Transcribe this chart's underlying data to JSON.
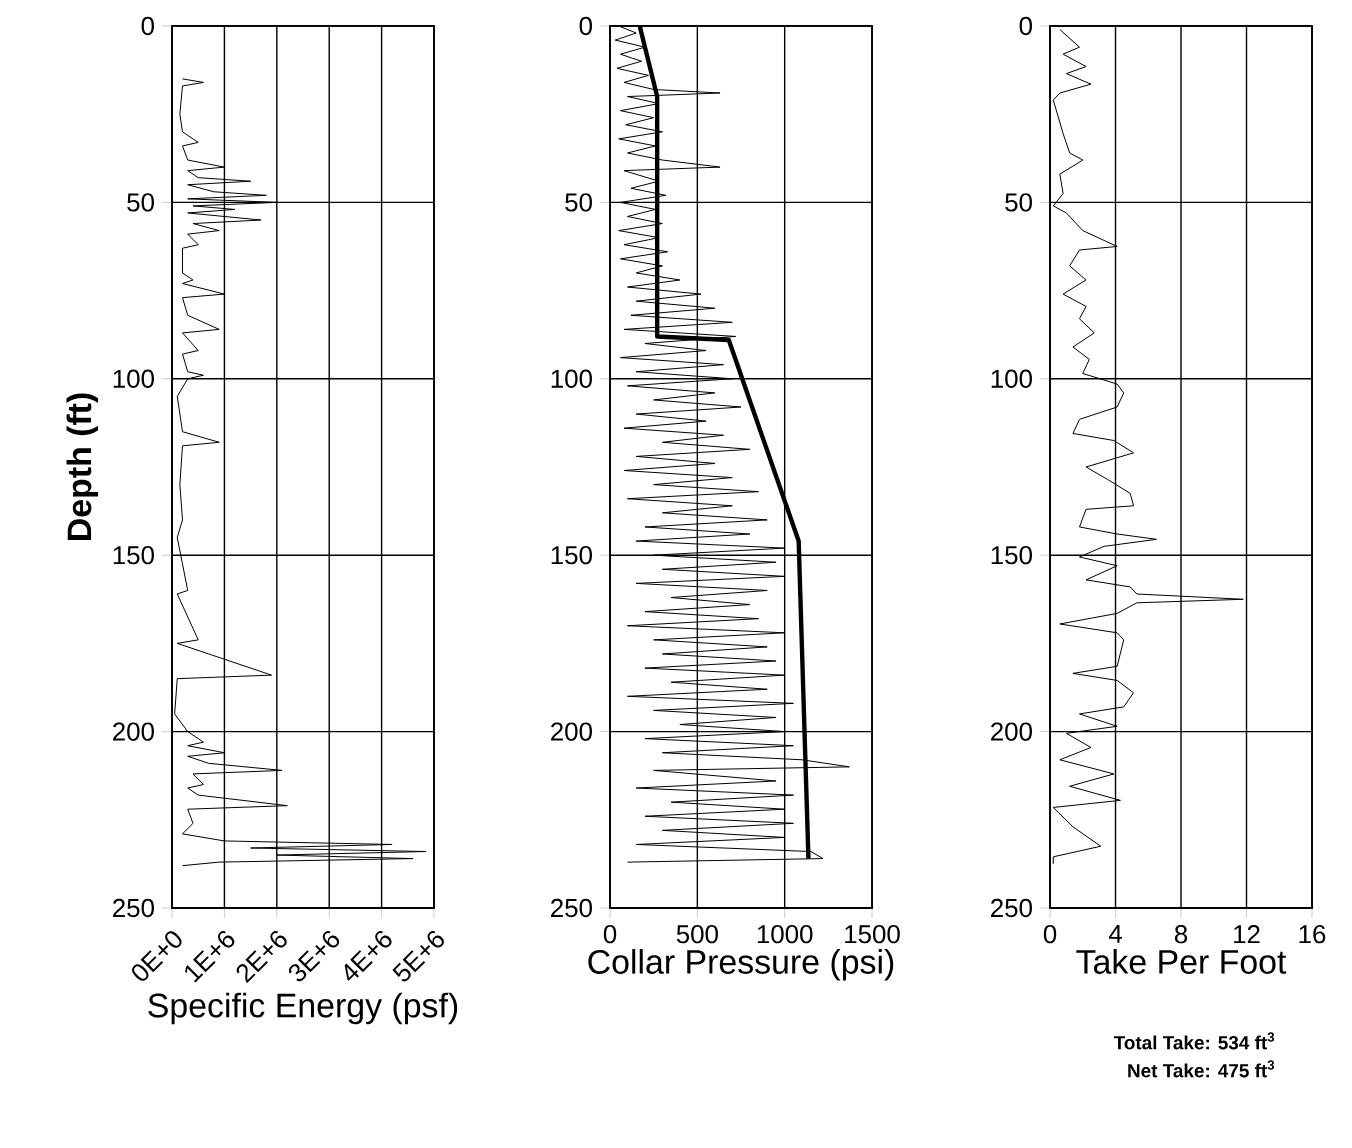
{
  "chart_data": [
    {
      "type": "line",
      "xlabel": "Specific Energy (psf)",
      "ylabel": "Depth (ft)",
      "grid": true,
      "xlim": [
        0,
        5000000
      ],
      "xticks": [
        {
          "value": 0,
          "label": "0E+0"
        },
        {
          "value": 1000000,
          "label": "1E+6"
        },
        {
          "value": 2000000,
          "label": "2E+6"
        },
        {
          "value": 3000000,
          "label": "3E+6"
        },
        {
          "value": 4000000,
          "label": "4E+6"
        },
        {
          "value": 5000000,
          "label": "5E+6"
        }
      ],
      "ylim": [
        250,
        0
      ],
      "yticks": [
        0,
        50,
        100,
        150,
        200,
        250
      ],
      "series": [
        {
          "color": "#000000",
          "x": [
            200000,
            600000,
            200000,
            150000,
            200000,
            500000,
            200000,
            300000,
            1000000,
            300000,
            500000,
            1500000,
            300000,
            800000,
            1800000,
            300000,
            2000000,
            400000,
            1200000,
            300000,
            1700000,
            400000,
            900000,
            300000,
            500000,
            200000,
            200000,
            400000,
            200000,
            1000000,
            200000,
            300000,
            900000,
            200000,
            500000,
            200000,
            300000,
            600000,
            300000,
            100000,
            200000,
            900000,
            200000,
            150000,
            200000,
            100000,
            300000,
            100000,
            500000,
            100000,
            1900000,
            100000,
            50000,
            300000,
            600000,
            300000,
            1000000,
            300000,
            700000,
            2100000,
            400000,
            600000,
            300000,
            500000,
            2200000,
            300000,
            400000,
            200000,
            1000000,
            4200000,
            1500000,
            4850000,
            2000000,
            4600000,
            900000,
            200000
          ],
          "values": [
            15,
            16,
            17,
            25,
            30,
            33,
            34,
            38,
            40,
            41,
            43,
            44,
            45,
            47,
            48,
            49,
            50,
            51,
            52,
            53,
            55,
            56,
            58,
            59,
            62,
            63,
            70,
            72,
            73,
            76,
            77,
            82,
            86,
            87,
            92,
            93,
            98,
            99,
            100,
            105,
            115,
            118,
            119,
            130,
            140,
            145,
            160,
            161,
            174,
            175,
            184,
            185,
            195,
            200,
            203,
            204,
            206,
            207,
            209,
            211,
            212,
            215,
            216,
            218,
            221,
            222,
            226,
            229,
            231,
            232,
            233,
            234,
            235,
            236,
            237,
            238
          ]
        }
      ]
    },
    {
      "type": "line",
      "xlabel": "Collar Pressure (psi)",
      "grid": true,
      "xlim": [
        0,
        1500
      ],
      "xticks": [
        0,
        500,
        1000,
        1500
      ],
      "ylim": [
        250,
        0
      ],
      "yticks": [
        0,
        50,
        100,
        150,
        200,
        250
      ],
      "series": [
        {
          "color": "#000000",
          "x": [
            50,
            150,
            30,
            200,
            60,
            180,
            40,
            220,
            80,
            250,
            630,
            100,
            280,
            60,
            250,
            90,
            300,
            50,
            260,
            100,
            300,
            630,
            80,
            280,
            120,
            320,
            60,
            260,
            100,
            300,
            50,
            280,
            80,
            330,
            60,
            300,
            150,
            400,
            100,
            520,
            150,
            600,
            120,
            700,
            80,
            720,
            200,
            550,
            60,
            650,
            150,
            700,
            100,
            600,
            250,
            750,
            150,
            550,
            80,
            650,
            300,
            800,
            150,
            600,
            80,
            700,
            250,
            850,
            100,
            700,
            300,
            900,
            200,
            800,
            150,
            1000,
            250,
            950,
            300,
            1000,
            150,
            900,
            350,
            800,
            200,
            850,
            100,
            1000,
            250,
            900,
            300,
            950,
            200,
            1000,
            350,
            900,
            100,
            1050,
            250,
            950,
            400,
            1000,
            200,
            1050,
            300,
            1100,
            1370,
            250,
            950,
            150,
            1050,
            350,
            1000,
            200,
            1050,
            300,
            1000,
            150,
            1150,
            1220,
            100
          ],
          "values": [
            0,
            2,
            4,
            6,
            8,
            10,
            12,
            14,
            16,
            18,
            19,
            20,
            22,
            24,
            26,
            28,
            30,
            32,
            34,
            36,
            38,
            40,
            41,
            44,
            46,
            48,
            50,
            52,
            54,
            56,
            58,
            60,
            62,
            64,
            66,
            68,
            70,
            72,
            74,
            76,
            78,
            80,
            82,
            84,
            86,
            88,
            90,
            92,
            94,
            96,
            98,
            100,
            102,
            104,
            106,
            108,
            110,
            112,
            114,
            116,
            118,
            120,
            122,
            124,
            126,
            128,
            130,
            132,
            134,
            136,
            138,
            140,
            142,
            144,
            146,
            148,
            150,
            152,
            154,
            156,
            158,
            160,
            162,
            164,
            166,
            168,
            170,
            172,
            174,
            176,
            178,
            180,
            182,
            184,
            186,
            188,
            190,
            192,
            194,
            196,
            198,
            200,
            202,
            204,
            206,
            208,
            210,
            211,
            214,
            216,
            218,
            220,
            222,
            224,
            226,
            228,
            230,
            232,
            234,
            236,
            237
          ]
        },
        {
          "color": "#000000",
          "x": [
            170,
            270,
            270,
            680,
            1080,
            1136
          ],
          "values": [
            0,
            20,
            88,
            89,
            146,
            236
          ]
        }
      ]
    },
    {
      "type": "line",
      "xlabel": "Take Per Foot",
      "grid": true,
      "xlim": [
        0,
        16
      ],
      "xticks": [
        0,
        4,
        8,
        12,
        16
      ],
      "ylim": [
        250,
        0
      ],
      "yticks": [
        0,
        50,
        100,
        150,
        200,
        250
      ],
      "annotations": [
        "Total Take: 534 ft$^{3}$",
        "Net Take: 475 ft$^{3}$"
      ],
      "series": [
        {
          "color": "#000000",
          "x": [
            0.6,
            1.8,
            0.8,
            2.2,
            1.0,
            2.5,
            0.6,
            0.2,
            0.8,
            1.2,
            2.0,
            0.6,
            0.8,
            0.2,
            1.0,
            2.0,
            4.1,
            1.8,
            1.2,
            2.2,
            0.8,
            2.2,
            1.8,
            2.7,
            1.4,
            2.4,
            2.0,
            4.1,
            4.5,
            4.1,
            1.8,
            1.4,
            3.9,
            5.1,
            2.2,
            3.5,
            4.9,
            5.1,
            2.2,
            1.8,
            4.1,
            6.5,
            3.3,
            1.8,
            4.1,
            2.2,
            4.9,
            5.3,
            11.8,
            5.3,
            4.1,
            0.6,
            4.1,
            4.5,
            4.1,
            1.4,
            4.1,
            5.1,
            4.5,
            1.8,
            4.1,
            1.0,
            2.5,
            0.6,
            3.9,
            1.2,
            4.3,
            0.2,
            1.4,
            3.1,
            0.2,
            0.2
          ],
          "values": [
            1,
            6,
            8,
            11.5,
            13.5,
            16.5,
            19,
            21,
            30.5,
            36,
            38,
            42,
            47.5,
            51,
            53,
            58,
            62.5,
            63.5,
            68,
            72,
            76,
            79.5,
            83,
            87,
            91,
            94.5,
            98.5,
            101.5,
            104,
            108,
            111.5,
            115.5,
            117.5,
            121,
            125,
            128.5,
            132.5,
            136,
            137,
            142,
            144,
            145.5,
            147.5,
            150.5,
            153,
            157,
            159,
            161,
            162.5,
            163.5,
            166.5,
            169.5,
            172,
            174,
            181.5,
            183.5,
            185.5,
            189,
            193,
            195,
            198.5,
            200.5,
            204.5,
            208,
            212,
            215.5,
            219.5,
            221.5,
            227,
            232.5,
            235.5,
            237.5
          ]
        }
      ]
    }
  ]
}
